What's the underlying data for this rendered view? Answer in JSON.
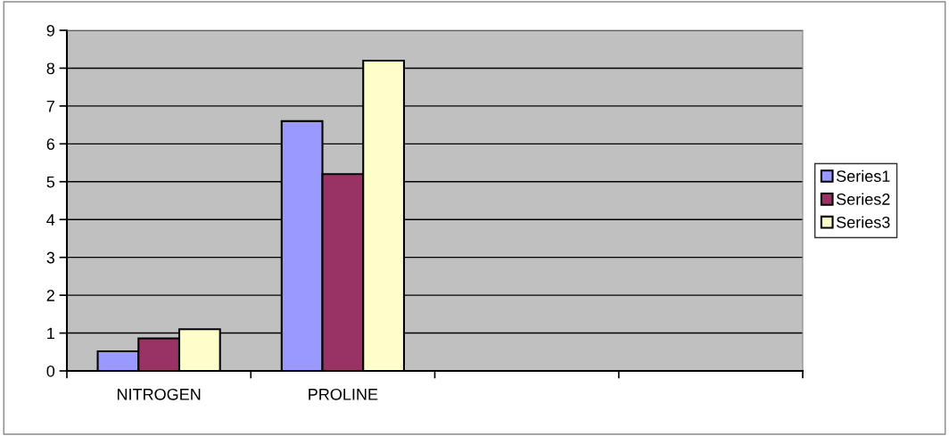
{
  "chart_data": {
    "type": "bar",
    "categories": [
      "NITROGEN",
      "PROLINE",
      null,
      null
    ],
    "series": [
      {
        "name": "Series1",
        "color": "#9999ff",
        "values": [
          0.52,
          6.6,
          null,
          null
        ]
      },
      {
        "name": "Series2",
        "color": "#993366",
        "values": [
          0.86,
          5.2,
          null,
          null
        ]
      },
      {
        "name": "Series3",
        "color": "#ffffcc",
        "values": [
          1.1,
          8.2,
          null,
          null
        ]
      }
    ],
    "ylim": [
      0,
      9
    ],
    "yticks": [
      0,
      1,
      2,
      3,
      4,
      5,
      6,
      7,
      8,
      9
    ],
    "grid": "y",
    "legend": "right"
  }
}
